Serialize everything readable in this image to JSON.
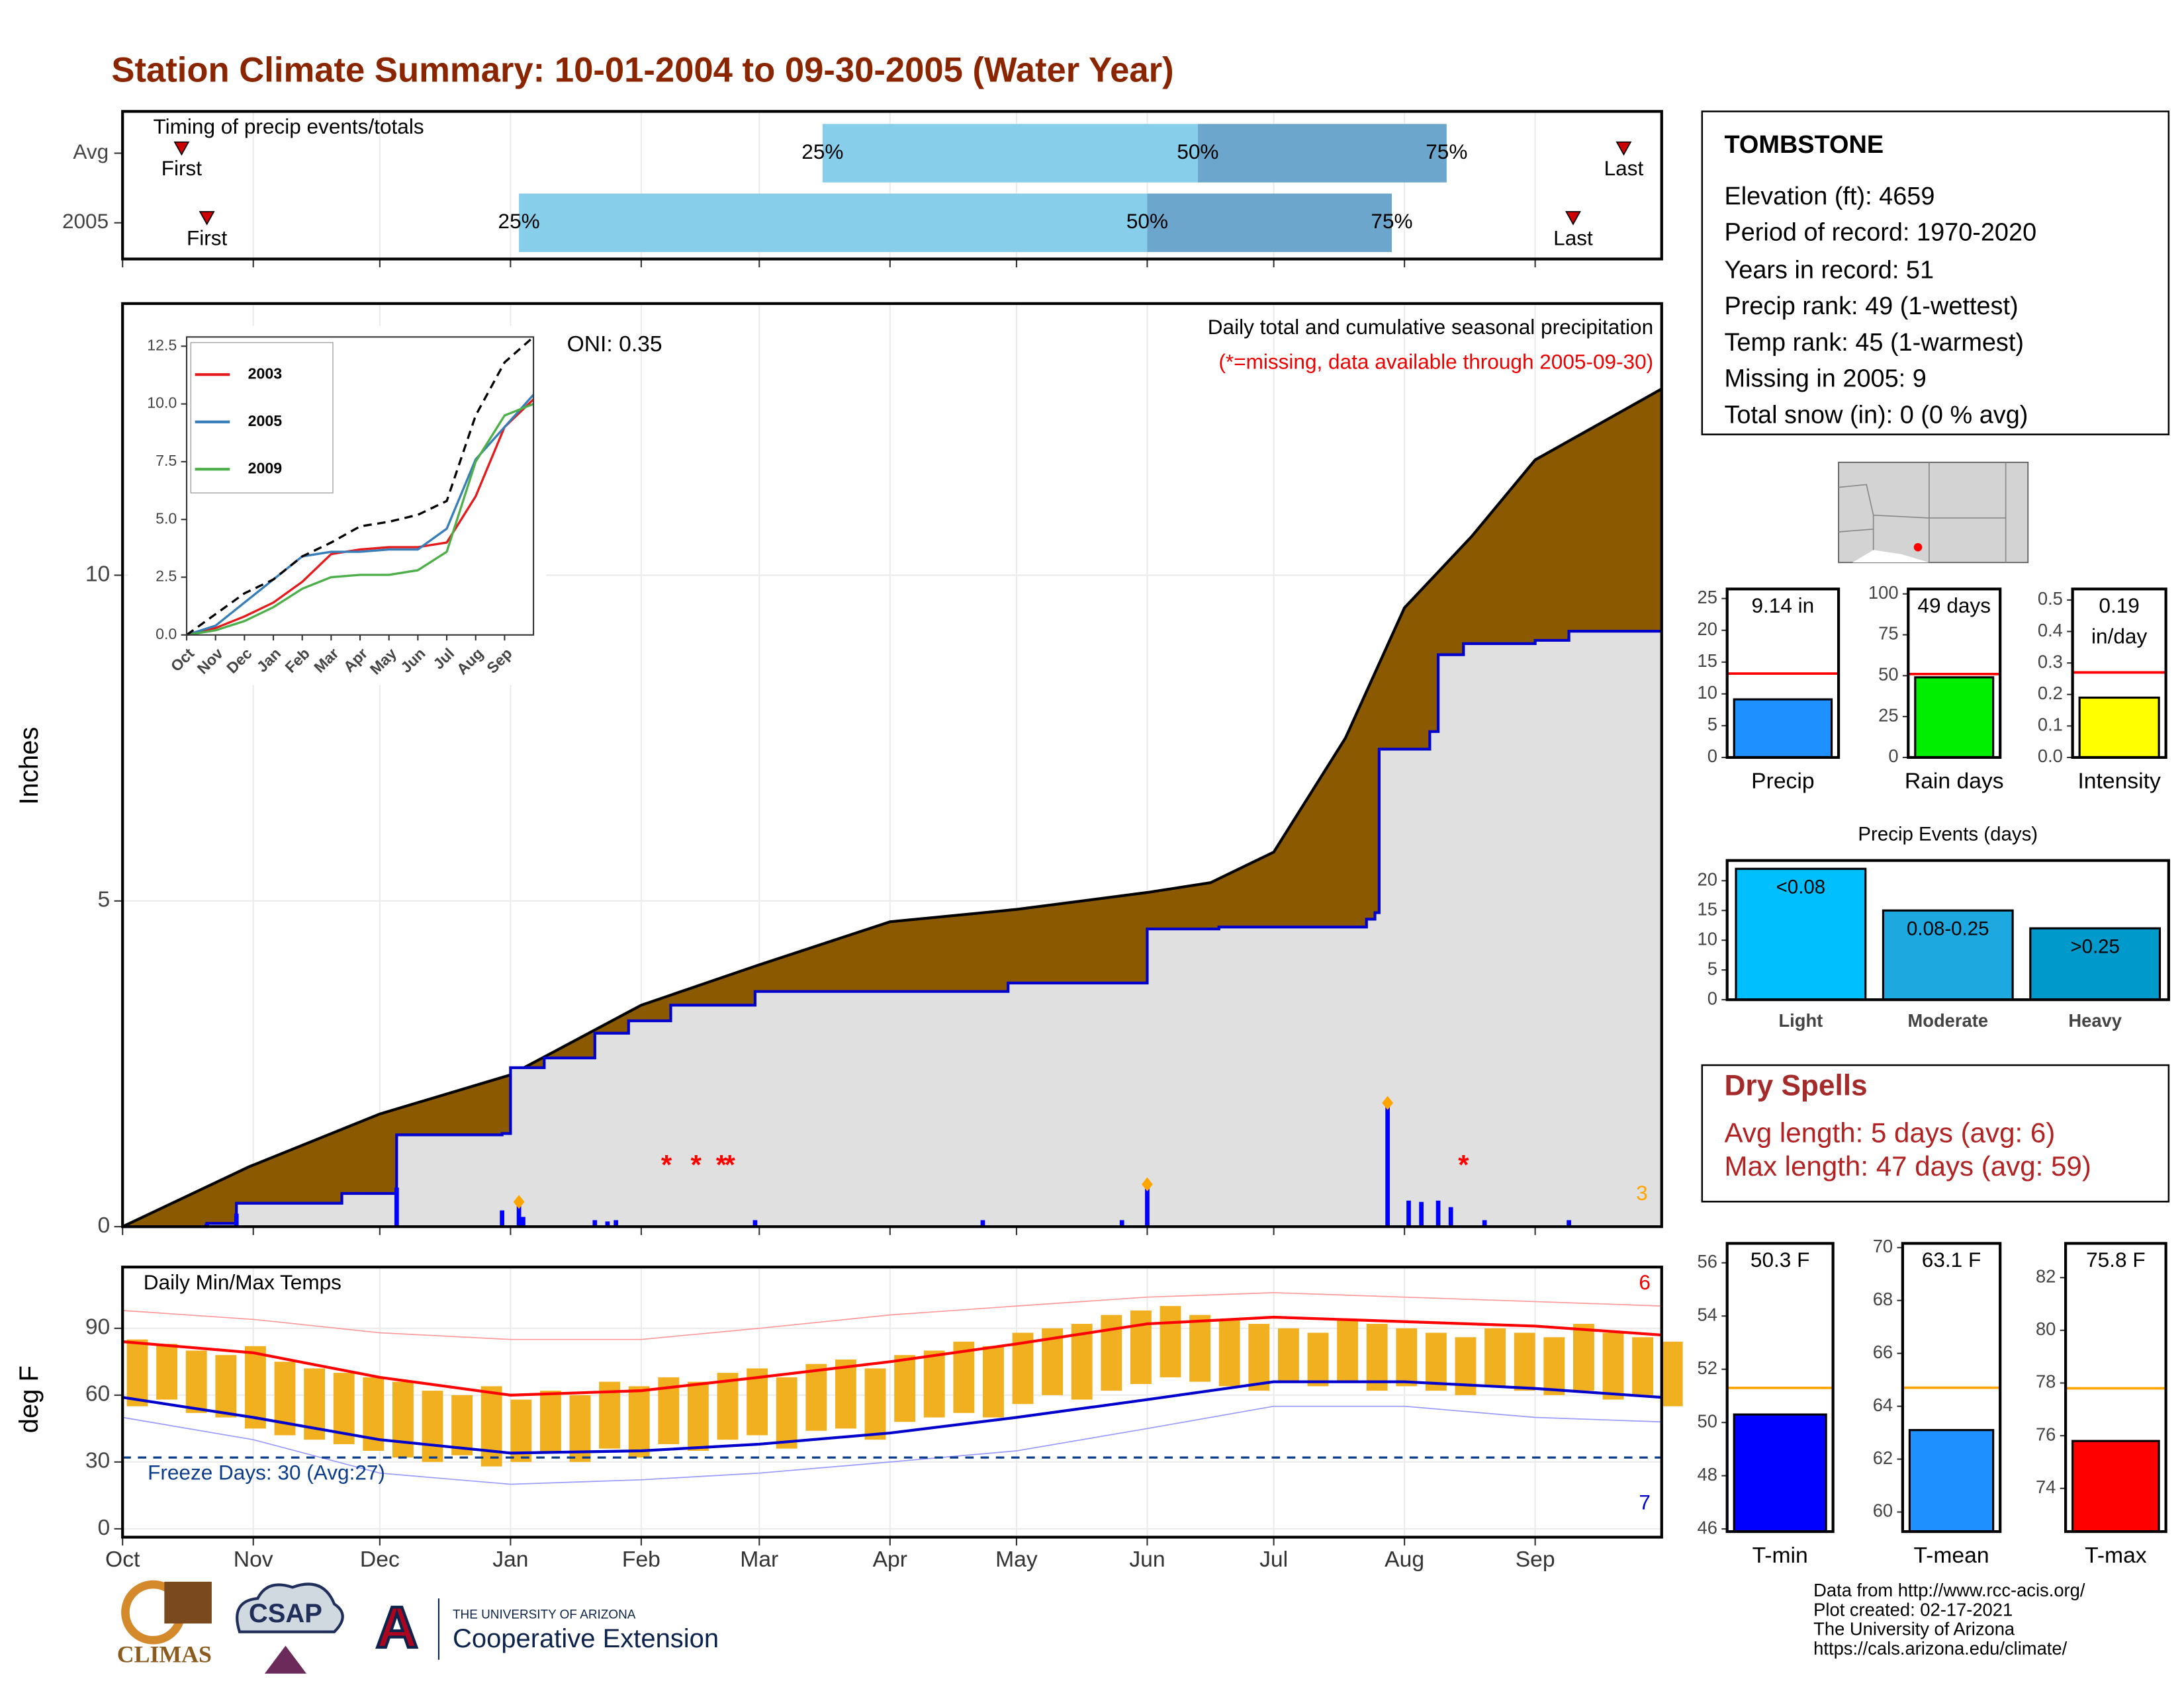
{
  "title": "Station Climate Summary: 10-01-2004 to 09-30-2005 (Water Year)",
  "chart_data": [
    {
      "type": "timing",
      "title": "Timing of precip events/totals",
      "categories": [
        "Avg",
        "2005"
      ],
      "labels": [
        "First",
        "25%",
        "50%",
        "75%",
        "Last"
      ],
      "values": [
        [
          14,
          166,
          255,
          314,
          356
        ],
        [
          20,
          94,
          243,
          301,
          344
        ]
      ],
      "xlim": [
        0,
        365
      ],
      "colors": [
        "#87ceeb",
        "#6ca6cd"
      ],
      "marker_color": "#cc0000"
    },
    {
      "type": "area",
      "ylabel": "Inches",
      "oni": "ONI: 0.35",
      "heading": "Daily total and cumulative seasonal precipitation",
      "note": "(*=missing, data available through 2005-09-30)",
      "xlim": [
        0,
        365
      ],
      "ylim": [
        0,
        14.17
      ],
      "yticks": [
        0,
        5,
        10
      ],
      "xticks": [
        0,
        31,
        61,
        92,
        123,
        151,
        182,
        212,
        243,
        273,
        304,
        335
      ],
      "grid": true,
      "series": [
        {
          "style": "area",
          "color": "#8b5a00",
          "line": "#000000",
          "x": [
            0,
            30,
            61,
            92,
            123,
            151,
            182,
            212,
            243,
            258,
            273,
            290,
            304,
            320,
            335,
            365
          ],
          "values": [
            0,
            0.92,
            1.73,
            2.33,
            3.4,
            4.02,
            4.68,
            4.87,
            5.13,
            5.28,
            5.75,
            7.5,
            9.5,
            10.6,
            11.77,
            12.86
          ]
        },
        {
          "style": "area",
          "color": "#e0e0e0",
          "line": "#0000cd",
          "step": true,
          "x": [
            0,
            20,
            27,
            52,
            65,
            90,
            92,
            100,
            112,
            120,
            130,
            150,
            204,
            210,
            235,
            243,
            260,
            295,
            297,
            298,
            310,
            312,
            318,
            335,
            343,
            365
          ],
          "values": [
            0,
            0.05,
            0.36,
            0.51,
            1.41,
            1.43,
            2.44,
            2.59,
            2.97,
            3.16,
            3.4,
            3.61,
            3.61,
            3.74,
            3.74,
            4.57,
            4.6,
            4.72,
            4.82,
            7.33,
            7.6,
            8.78,
            8.95,
            9.0,
            9.14,
            9.14
          ]
        },
        {
          "style": "bar",
          "color": "#0000ff",
          "x": [
            20,
            27,
            65,
            90,
            94,
            95,
            112,
            115,
            117,
            150,
            204,
            237,
            243,
            300,
            305,
            308,
            312,
            315,
            323,
            343
          ],
          "values": [
            0.05,
            0.2,
            0.6,
            0.25,
            0.38,
            0.15,
            0.1,
            0.08,
            0.1,
            0.1,
            0.1,
            0.1,
            0.65,
            1.9,
            0.4,
            0.38,
            0.4,
            0.3,
            0.1,
            0.1
          ]
        }
      ],
      "missing_days": [
        129,
        136,
        142,
        144,
        318
      ],
      "missing_label": "*",
      "missing_color": "#ff0000",
      "record_days": [
        94,
        243,
        300
      ],
      "record_color": "#ffa500",
      "record_count": 3
    },
    {
      "type": "line",
      "xlim": [
        0,
        12
      ],
      "ylim": [
        0,
        12.9
      ],
      "xticks": [
        {
          "value": 0,
          "label": "Oct"
        },
        {
          "value": 1,
          "label": "Nov"
        },
        {
          "value": 2,
          "label": "Dec"
        },
        {
          "value": 3,
          "label": "Jan"
        },
        {
          "value": 4,
          "label": "Feb"
        },
        {
          "value": 5,
          "label": "Mar"
        },
        {
          "value": 6,
          "label": "Apr"
        },
        {
          "value": 7,
          "label": "May"
        },
        {
          "value": 8,
          "label": "Jun"
        },
        {
          "value": 9,
          "label": "Jul"
        },
        {
          "value": 10,
          "label": "Aug"
        },
        {
          "value": 11,
          "label": "Sep"
        }
      ],
      "yticks": [
        {
          "value": 0,
          "label": "0.0"
        },
        {
          "value": 2.5,
          "label": "2.5"
        },
        {
          "value": 5,
          "label": "5.0"
        },
        {
          "value": 7.5,
          "label": "7.5"
        },
        {
          "value": 10,
          "label": "10.0"
        },
        {
          "value": 12.5,
          "label": "12.5"
        }
      ],
      "x": [
        0,
        1,
        2,
        3,
        4,
        5,
        6,
        7,
        8,
        9,
        10,
        11,
        12
      ],
      "series": [
        {
          "name": "2003",
          "color": "#e41a1c",
          "values": [
            0,
            0.3,
            0.8,
            1.4,
            2.3,
            3.5,
            3.7,
            3.8,
            3.8,
            4.0,
            6.0,
            9.0,
            10.2
          ]
        },
        {
          "name": "2005",
          "color": "#377eb8",
          "values": [
            0,
            0.4,
            1.4,
            2.4,
            3.4,
            3.6,
            3.6,
            3.7,
            3.7,
            4.6,
            7.6,
            9.0,
            10.4
          ]
        },
        {
          "name": "2009",
          "color": "#4daf4a",
          "values": [
            0,
            0.2,
            0.6,
            1.2,
            2.0,
            2.5,
            2.6,
            2.6,
            2.8,
            3.6,
            7.5,
            9.5,
            10.0
          ]
        },
        {
          "color": "#000000",
          "dash": true,
          "values": [
            0,
            0.9,
            1.8,
            2.4,
            3.4,
            4.0,
            4.7,
            4.9,
            5.2,
            5.8,
            9.5,
            11.8,
            12.9
          ]
        }
      ]
    },
    {
      "type": "temps",
      "title": "Daily Min/Max Temps",
      "ylabel": "deg F",
      "xlim": [
        0,
        365
      ],
      "ylim": [
        -3.75,
        117.5
      ],
      "yticks": [
        0,
        30,
        60,
        90
      ],
      "xticks": [
        {
          "value": 0,
          "label": "Oct"
        },
        {
          "value": 31,
          "label": "Nov"
        },
        {
          "value": 61,
          "label": "Dec"
        },
        {
          "value": 92,
          "label": "Jan"
        },
        {
          "value": 123,
          "label": "Feb"
        },
        {
          "value": 151,
          "label": "Mar"
        },
        {
          "value": 182,
          "label": "Apr"
        },
        {
          "value": 212,
          "label": "May"
        },
        {
          "value": 243,
          "label": "Jun"
        },
        {
          "value": 273,
          "label": "Jul"
        },
        {
          "value": 304,
          "label": "Aug"
        },
        {
          "value": 335,
          "label": "Sep"
        }
      ],
      "x": [
        0,
        7,
        14,
        21,
        28,
        35,
        42,
        49,
        56,
        63,
        70,
        77,
        84,
        91,
        98,
        105,
        112,
        119,
        126,
        133,
        140,
        147,
        154,
        161,
        168,
        175,
        182,
        189,
        196,
        203,
        210,
        217,
        224,
        231,
        238,
        245,
        252,
        259,
        266,
        273,
        280,
        287,
        294,
        301,
        308,
        315,
        322,
        329,
        336,
        343,
        350,
        357,
        364
      ],
      "low": [
        55,
        58,
        52,
        50,
        45,
        42,
        40,
        38,
        35,
        32,
        30,
        33,
        28,
        30,
        34,
        30,
        36,
        32,
        38,
        35,
        40,
        42,
        36,
        44,
        45,
        40,
        48,
        50,
        52,
        50,
        56,
        60,
        58,
        62,
        65,
        68,
        66,
        64,
        62,
        66,
        64,
        66,
        62,
        64,
        62,
        60,
        64,
        62,
        60,
        62,
        58,
        60,
        55
      ],
      "high": [
        85,
        83,
        80,
        78,
        82,
        75,
        72,
        70,
        68,
        66,
        62,
        60,
        64,
        58,
        62,
        60,
        66,
        64,
        68,
        66,
        70,
        72,
        68,
        74,
        76,
        72,
        78,
        80,
        84,
        82,
        88,
        90,
        92,
        96,
        98,
        100,
        96,
        94,
        92,
        90,
        88,
        94,
        92,
        90,
        88,
        86,
        90,
        88,
        86,
        92,
        88,
        86,
        84
      ],
      "range_color": "#f0b020",
      "series": [
        {
          "color": "#ff9999",
          "width": 0.8,
          "x": [
            0,
            31,
            61,
            92,
            123,
            151,
            182,
            212,
            243,
            273,
            304,
            335,
            365
          ],
          "values": [
            98,
            94,
            88,
            85,
            85,
            90,
            96,
            100,
            104,
            106,
            104,
            102,
            100
          ]
        },
        {
          "color": "#9999ff",
          "width": 0.8,
          "x": [
            0,
            31,
            61,
            92,
            123,
            151,
            182,
            212,
            243,
            273,
            304,
            335,
            365
          ],
          "values": [
            50,
            40,
            25,
            20,
            22,
            25,
            30,
            35,
            45,
            55,
            55,
            50,
            48
          ]
        },
        {
          "color": "#ff0000",
          "width": 2,
          "x": [
            0,
            31,
            61,
            92,
            123,
            151,
            182,
            212,
            243,
            273,
            304,
            335,
            365
          ],
          "values": [
            84,
            79,
            68,
            60,
            62,
            68,
            75,
            83,
            92,
            95,
            93,
            91,
            87
          ]
        },
        {
          "color": "#0000cd",
          "width": 2,
          "x": [
            0,
            31,
            61,
            92,
            123,
            151,
            182,
            212,
            243,
            273,
            304,
            335,
            365
          ],
          "values": [
            59,
            50,
            40,
            34,
            35,
            38,
            43,
            50,
            58,
            66,
            66,
            63,
            59
          ]
        }
      ],
      "freeze_line": 32,
      "freeze_label": "Freeze Days: 30 (Avg:27)",
      "freeze_color": "#0b3c8c",
      "high_count": 6,
      "low_count": 7
    },
    {
      "type": "bar",
      "categories": [
        "Precip"
      ],
      "values": [
        9.14
      ],
      "value_labels": [
        "9.14 in"
      ],
      "color": "#1e90ff",
      "avg": 13.2,
      "avg_color": "#ff0000",
      "ylim": [
        0,
        26.5
      ],
      "yticks": [
        0,
        5,
        10,
        15,
        20,
        25
      ]
    },
    {
      "type": "bar",
      "categories": [
        "Rain days"
      ],
      "values": [
        49
      ],
      "value_labels": [
        "49 days"
      ],
      "color": "#00ee00",
      "avg": 51,
      "avg_color": "#ff0000",
      "ylim": [
        0,
        103
      ],
      "yticks": [
        0,
        25,
        50,
        75,
        100
      ]
    },
    {
      "type": "bar",
      "categories": [
        "Intensity"
      ],
      "values": [
        0.19
      ],
      "value_labels": [
        "0.19 in/day"
      ],
      "color": "#ffff00",
      "avg": 0.27,
      "avg_color": "#ff0000",
      "ylim": [
        0,
        0.535
      ],
      "yticks": [
        {
          "value": 0,
          "label": "0.0"
        },
        0.1,
        0.2,
        0.3,
        0.4,
        0.5
      ]
    },
    {
      "type": "events",
      "title": "Precip Events (days)",
      "categories": [
        "Light",
        "Moderate",
        "Heavy"
      ],
      "values": [
        22,
        15,
        12
      ],
      "value_labels": [
        "<0.08",
        "0.08-0.25",
        ">0.25"
      ],
      "colors": [
        "#00bfff",
        "#1ea8e0",
        "#0099cc"
      ],
      "ylim": [
        0,
        23.4
      ],
      "yticks": [
        0,
        5,
        10,
        15,
        20
      ]
    },
    {
      "type": "bar",
      "categories": [
        "T-min"
      ],
      "values": [
        50.3
      ],
      "value_labels": [
        "50.3 F"
      ],
      "color": "#0000ff",
      "avg": 51.3,
      "avg_color": "#ffa500",
      "ylim": [
        45.9,
        56.73
      ],
      "yticks": [
        46,
        48,
        50,
        52,
        54,
        56
      ]
    },
    {
      "type": "bar",
      "categories": [
        "T-mean"
      ],
      "values": [
        63.1
      ],
      "value_labels": [
        "63.1 F"
      ],
      "color": "#1e90ff",
      "avg": 64.7,
      "avg_color": "#ffa500",
      "ylim": [
        59.26,
        70.16
      ],
      "yticks": [
        60,
        62,
        64,
        66,
        68,
        70
      ]
    },
    {
      "type": "bar",
      "categories": [
        "T-max"
      ],
      "values": [
        75.8
      ],
      "value_labels": [
        "75.8 F"
      ],
      "color": "#ff0000",
      "avg": 77.8,
      "avg_color": "#ffa500",
      "ylim": [
        72.36,
        83.3
      ],
      "yticks": [
        74,
        76,
        78,
        80,
        82
      ]
    }
  ],
  "station": {
    "name": "TOMBSTONE",
    "lines": [
      "Elevation (ft): 4659",
      "Period of record: 1970-2020",
      "Years in record: 51",
      "Precip rank: 49 (1-wettest)",
      "Temp rank: 45 (1-warmest)",
      "Missing in 2005: 9",
      "Total snow (in): 0 (0 % avg)"
    ]
  },
  "dry_spells": {
    "title": "Dry Spells",
    "lines": [
      "Avg length: 5 days (avg: 6)",
      "Max length: 47 days (avg: 59)"
    ]
  },
  "footer": [
    "Data from http://www.rcc-acis.org/",
    "Plot created: 02-17-2021",
    "The University of Arizona",
    "https://cals.arizona.edu/climate/"
  ],
  "logos": {
    "climas": "CLIMAS",
    "csap": "CSAP",
    "ua_mark": "A",
    "ua": "THE UNIVERSITY OF ARIZONA",
    "extension": "Cooperative Extension"
  }
}
